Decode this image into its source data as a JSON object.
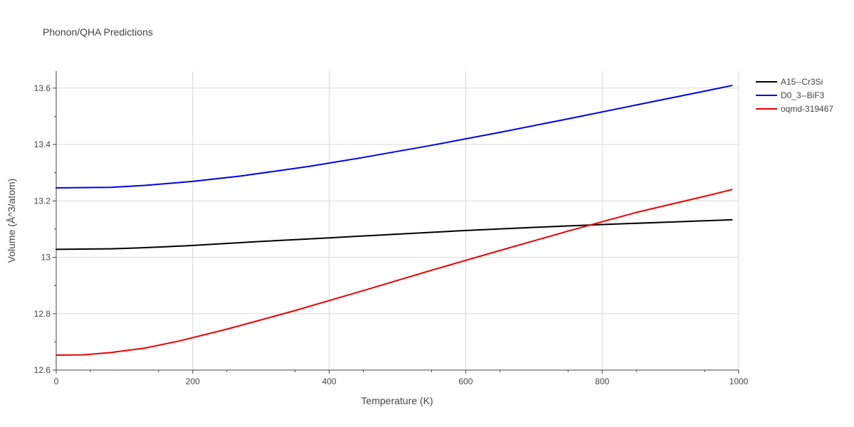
{
  "chart_data": {
    "type": "line",
    "title": "Phonon/QHA Predictions",
    "xlabel": "Temperature (K)",
    "ylabel": "Volume (Å^3/atom)",
    "xlim": [
      0,
      1000
    ],
    "ylim": [
      12.6,
      13.66
    ],
    "xticks": [
      0,
      200,
      400,
      600,
      800,
      1000
    ],
    "xtick_labels": [
      "0",
      "200",
      "400",
      "600",
      "800",
      "1000"
    ],
    "yticks": [
      12.6,
      12.8,
      13.0,
      13.2,
      13.4,
      13.6
    ],
    "ytick_labels": [
      "12.6",
      "12.8",
      "13",
      "13.2",
      "13.4",
      "13.6"
    ],
    "grid": true,
    "legend_position": "top-right",
    "series": [
      {
        "name": "A15--Cr3Si",
        "color": "#000000",
        "x": [
          0,
          40,
          80,
          120,
          160,
          200,
          300,
          400,
          500,
          600,
          700,
          800,
          900,
          990
        ],
        "y": [
          13.028,
          13.029,
          13.03,
          13.033,
          13.037,
          13.042,
          13.056,
          13.069,
          13.082,
          13.095,
          13.106,
          13.116,
          13.125,
          13.133
        ]
      },
      {
        "name": "D0_3--BiF3",
        "color": "#0000ee",
        "x": [
          0,
          40,
          80,
          130,
          200,
          270,
          370,
          450,
          550,
          650,
          750,
          850,
          950,
          990
        ],
        "y": [
          13.246,
          13.247,
          13.248,
          13.255,
          13.269,
          13.288,
          13.322,
          13.354,
          13.397,
          13.443,
          13.491,
          13.54,
          13.589,
          13.609
        ]
      },
      {
        "name": "oqmd-319467",
        "color": "#ee0000",
        "x": [
          0,
          40,
          80,
          130,
          180,
          250,
          350,
          450,
          550,
          650,
          750,
          850,
          950,
          990
        ],
        "y": [
          12.653,
          12.654,
          12.662,
          12.678,
          12.703,
          12.745,
          12.811,
          12.882,
          12.954,
          13.024,
          13.093,
          13.159,
          13.216,
          13.24
        ]
      }
    ]
  }
}
